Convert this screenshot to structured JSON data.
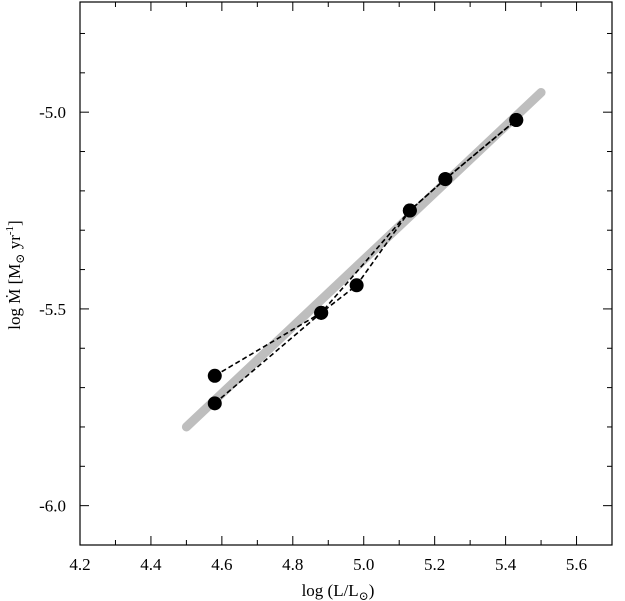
{
  "chart_data": {
    "type": "scatter",
    "xlabel": {
      "prefix": "log (L/L",
      "sun": "⊙",
      "suffix": ")"
    },
    "ylabel": {
      "prefix": "log ",
      "mdot": "Ṁ",
      "bracket_open": " [M",
      "sun": "⊙",
      "unit": " yr",
      "exponent": "-1",
      "bracket_close": "]"
    },
    "xlim": [
      4.2,
      5.7
    ],
    "ylim": [
      -6.1,
      -4.72
    ],
    "x_ticks": [
      4.2,
      4.4,
      4.6,
      4.8,
      5.0,
      5.2,
      5.4,
      5.6
    ],
    "x_tick_labels": [
      "4.2",
      "4.4",
      "4.6",
      "4.8",
      "5.0",
      "5.2",
      "5.4",
      "5.6"
    ],
    "y_ticks": [
      -6.0,
      -5.5,
      -5.0
    ],
    "y_tick_labels": [
      "-6.0",
      "-5.5",
      "-5.0"
    ],
    "fit_line": {
      "x": [
        4.5,
        5.5
      ],
      "y": [
        -5.8,
        -4.95
      ],
      "color": "#bebebe"
    },
    "series": [
      {
        "x": [
          4.58,
          4.88,
          4.98,
          5.13,
          5.23,
          5.43
        ],
        "y": [
          -5.67,
          -5.51,
          -5.44,
          -5.25,
          -5.17,
          -5.02
        ]
      },
      {
        "x": [
          4.58,
          4.88,
          5.13,
          5.23,
          5.43
        ],
        "y": [
          -5.74,
          -5.51,
          -5.25,
          -5.17,
          -5.02
        ]
      }
    ],
    "marker_color": "#000000",
    "grid": false
  }
}
